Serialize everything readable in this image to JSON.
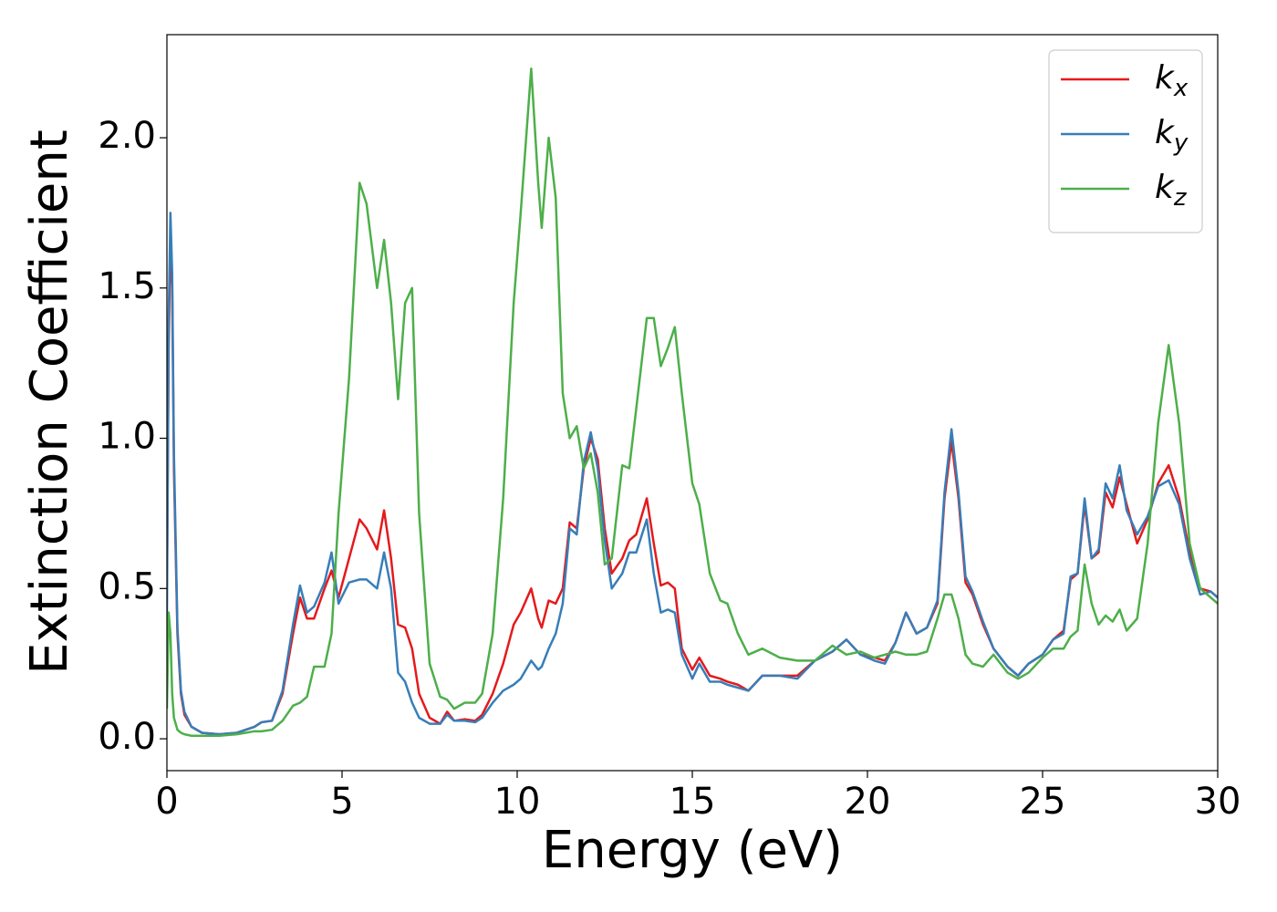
{
  "chart_data": {
    "type": "line",
    "xlabel": "Energy (eV)",
    "ylabel": "Extinction Coefficient",
    "x": [
      0,
      0.05,
      0.1,
      0.15,
      0.2,
      0.3,
      0.4,
      0.5,
      0.7,
      1.0,
      1.5,
      2.0,
      2.5,
      2.7,
      3.0,
      3.3,
      3.6,
      3.8,
      4.0,
      4.2,
      4.5,
      4.7,
      4.9,
      5.2,
      5.5,
      5.7,
      6.0,
      6.2,
      6.4,
      6.6,
      6.8,
      7.0,
      7.2,
      7.5,
      7.8,
      8.0,
      8.2,
      8.5,
      8.8,
      9.0,
      9.3,
      9.6,
      9.9,
      10.1,
      10.4,
      10.6,
      10.7,
      10.9,
      11.1,
      11.3,
      11.5,
      11.7,
      11.9,
      12.1,
      12.3,
      12.5,
      12.7,
      13.0,
      13.2,
      13.4,
      13.7,
      13.9,
      14.1,
      14.3,
      14.5,
      14.7,
      15.0,
      15.2,
      15.5,
      15.8,
      16.0,
      16.3,
      16.6,
      17.0,
      17.5,
      18.0,
      18.5,
      19.0,
      19.4,
      19.8,
      20.2,
      20.5,
      20.8,
      21.1,
      21.4,
      21.7,
      22.0,
      22.2,
      22.4,
      22.6,
      22.8,
      23.0,
      23.3,
      23.6,
      24.0,
      24.3,
      24.6,
      25.0,
      25.3,
      25.6,
      25.8,
      26.0,
      26.2,
      26.4,
      26.6,
      26.8,
      27.0,
      27.2,
      27.4,
      27.7,
      28.0,
      28.3,
      28.6,
      28.9,
      29.2,
      29.5,
      29.8,
      30.0
    ],
    "series": [
      {
        "name": "kx",
        "color": "#e41a1c",
        "values": [
          0.5,
          1.3,
          1.68,
          1.5,
          0.9,
          0.35,
          0.15,
          0.08,
          0.04,
          0.02,
          0.015,
          0.02,
          0.04,
          0.055,
          0.06,
          0.15,
          0.35,
          0.47,
          0.4,
          0.4,
          0.5,
          0.56,
          0.47,
          0.6,
          0.73,
          0.7,
          0.63,
          0.76,
          0.6,
          0.38,
          0.37,
          0.3,
          0.15,
          0.07,
          0.05,
          0.09,
          0.06,
          0.065,
          0.06,
          0.08,
          0.15,
          0.25,
          0.38,
          0.42,
          0.5,
          0.4,
          0.37,
          0.46,
          0.45,
          0.5,
          0.72,
          0.7,
          0.9,
          1.0,
          0.93,
          0.7,
          0.55,
          0.6,
          0.66,
          0.68,
          0.8,
          0.65,
          0.51,
          0.52,
          0.5,
          0.3,
          0.23,
          0.27,
          0.21,
          0.2,
          0.19,
          0.18,
          0.16,
          0.21,
          0.21,
          0.21,
          0.26,
          0.29,
          0.33,
          0.28,
          0.27,
          0.26,
          0.32,
          0.42,
          0.35,
          0.37,
          0.45,
          0.8,
          0.99,
          0.8,
          0.52,
          0.48,
          0.38,
          0.3,
          0.24,
          0.21,
          0.25,
          0.28,
          0.33,
          0.36,
          0.53,
          0.55,
          0.78,
          0.6,
          0.62,
          0.82,
          0.77,
          0.87,
          0.78,
          0.65,
          0.73,
          0.85,
          0.91,
          0.8,
          0.62,
          0.5,
          0.49,
          0.47
        ]
      },
      {
        "name": "ky",
        "color": "#377eb8",
        "values": [
          0.4,
          1.4,
          1.75,
          1.55,
          0.95,
          0.37,
          0.16,
          0.09,
          0.04,
          0.02,
          0.015,
          0.02,
          0.04,
          0.055,
          0.06,
          0.16,
          0.38,
          0.51,
          0.42,
          0.44,
          0.52,
          0.62,
          0.45,
          0.52,
          0.53,
          0.53,
          0.5,
          0.62,
          0.5,
          0.22,
          0.19,
          0.12,
          0.07,
          0.05,
          0.05,
          0.08,
          0.06,
          0.06,
          0.055,
          0.07,
          0.12,
          0.16,
          0.18,
          0.2,
          0.26,
          0.23,
          0.24,
          0.3,
          0.35,
          0.45,
          0.7,
          0.68,
          0.92,
          1.02,
          0.9,
          0.66,
          0.5,
          0.55,
          0.62,
          0.62,
          0.73,
          0.55,
          0.42,
          0.43,
          0.42,
          0.28,
          0.2,
          0.25,
          0.19,
          0.19,
          0.18,
          0.17,
          0.16,
          0.21,
          0.21,
          0.2,
          0.26,
          0.29,
          0.33,
          0.28,
          0.26,
          0.25,
          0.32,
          0.42,
          0.35,
          0.37,
          0.46,
          0.82,
          1.03,
          0.82,
          0.54,
          0.49,
          0.39,
          0.3,
          0.24,
          0.21,
          0.25,
          0.28,
          0.33,
          0.35,
          0.54,
          0.55,
          0.8,
          0.6,
          0.63,
          0.85,
          0.8,
          0.91,
          0.76,
          0.68,
          0.74,
          0.84,
          0.86,
          0.78,
          0.6,
          0.48,
          0.49,
          0.47
        ]
      },
      {
        "name": "kz",
        "color": "#4daf4a",
        "values": [
          0.1,
          0.42,
          0.35,
          0.15,
          0.07,
          0.03,
          0.02,
          0.015,
          0.01,
          0.01,
          0.01,
          0.015,
          0.025,
          0.025,
          0.03,
          0.06,
          0.11,
          0.12,
          0.14,
          0.24,
          0.24,
          0.35,
          0.75,
          1.2,
          1.85,
          1.78,
          1.5,
          1.66,
          1.45,
          1.13,
          1.45,
          1.5,
          0.75,
          0.25,
          0.14,
          0.13,
          0.1,
          0.12,
          0.12,
          0.15,
          0.35,
          0.8,
          1.45,
          1.75,
          2.23,
          1.85,
          1.7,
          2.0,
          1.8,
          1.15,
          1.0,
          1.04,
          0.9,
          0.95,
          0.82,
          0.58,
          0.6,
          0.91,
          0.9,
          1.1,
          1.4,
          1.4,
          1.24,
          1.3,
          1.37,
          1.15,
          0.85,
          0.78,
          0.55,
          0.46,
          0.45,
          0.35,
          0.28,
          0.3,
          0.27,
          0.26,
          0.26,
          0.31,
          0.28,
          0.29,
          0.27,
          0.28,
          0.29,
          0.28,
          0.28,
          0.29,
          0.4,
          0.48,
          0.48,
          0.4,
          0.28,
          0.25,
          0.24,
          0.28,
          0.22,
          0.2,
          0.22,
          0.27,
          0.3,
          0.3,
          0.34,
          0.36,
          0.58,
          0.45,
          0.38,
          0.41,
          0.39,
          0.43,
          0.36,
          0.4,
          0.65,
          1.05,
          1.31,
          1.05,
          0.65,
          0.5,
          0.47,
          0.45
        ]
      }
    ],
    "xlim": [
      0,
      30
    ],
    "xticks": [
      0,
      5,
      10,
      15,
      20,
      25,
      30
    ],
    "ylim": [
      -0.106,
      2.343
    ],
    "yticks": [
      {
        "value": 0,
        "label": "0.0"
      },
      0.5,
      {
        "value": 1,
        "label": "1.0"
      },
      1.5,
      {
        "value": 2,
        "label": "2.0"
      }
    ],
    "legend": "upper right",
    "grid": false
  }
}
